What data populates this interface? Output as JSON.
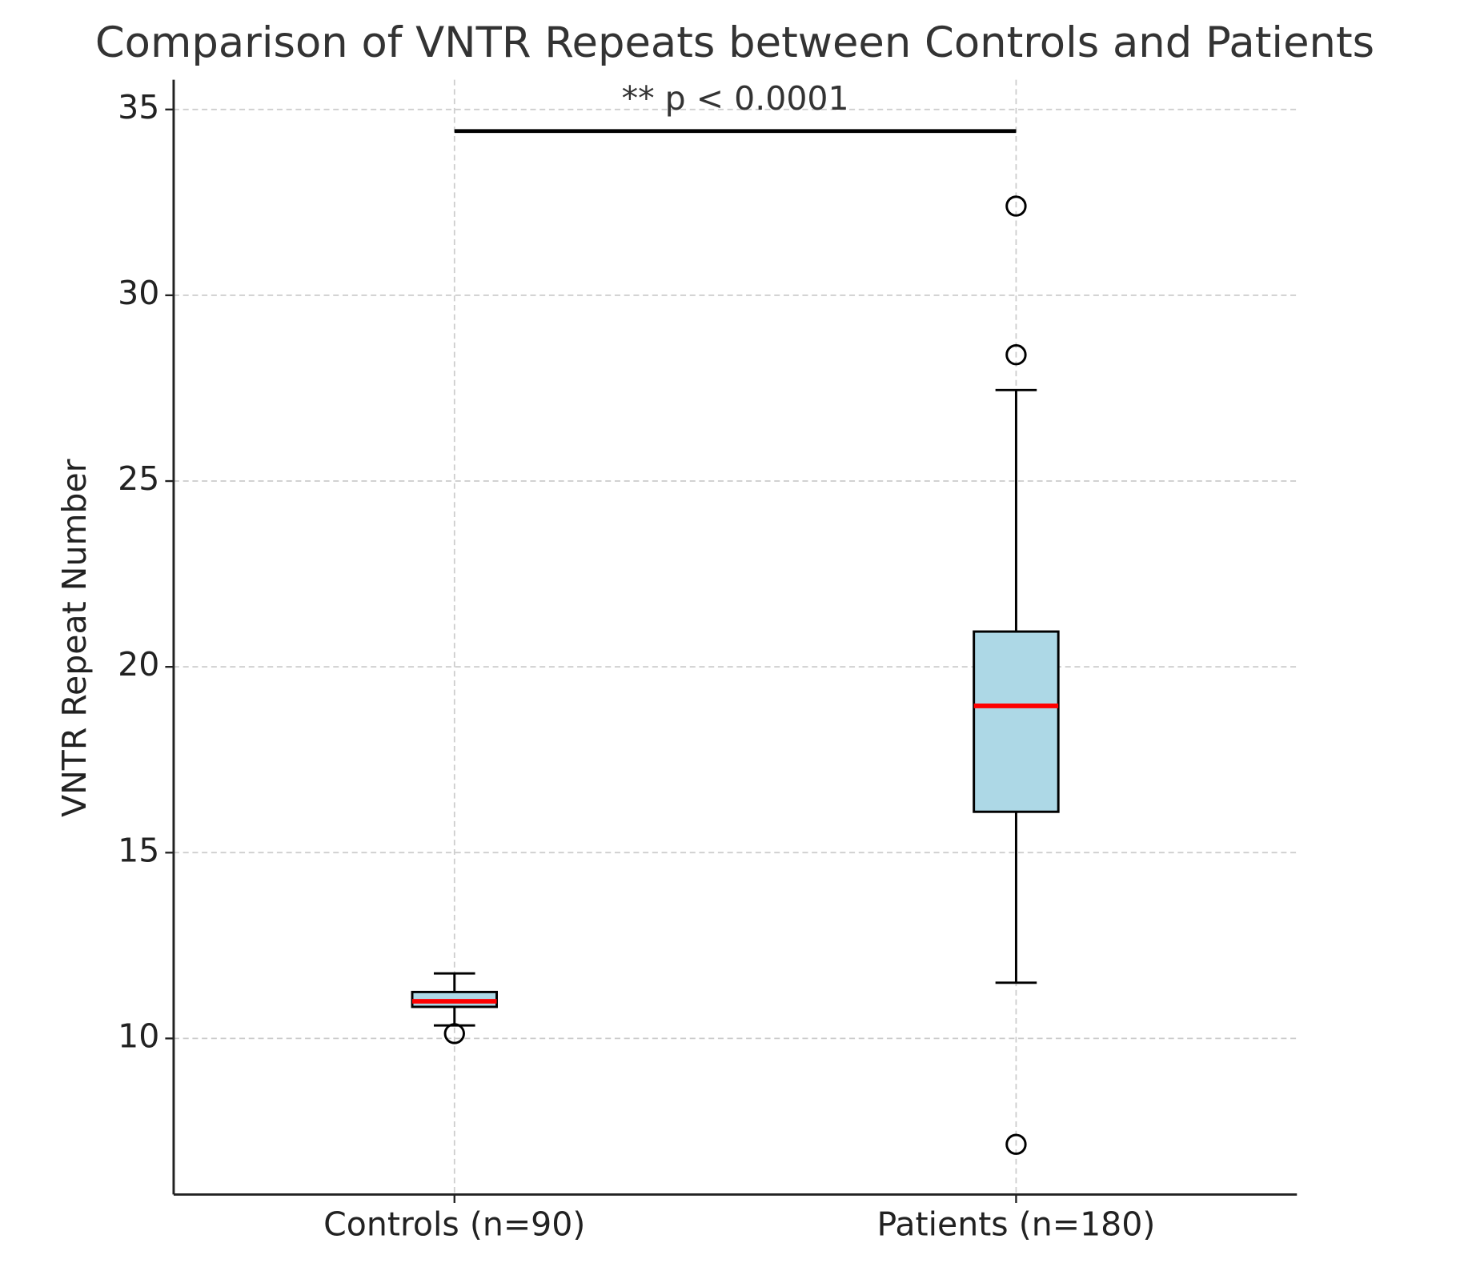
{
  "chart_data": {
    "type": "box",
    "title": "Comparison of VNTR Repeats between Controls and Patients",
    "y_label": "VNTR Repeat Number",
    "categories": [
      "Controls (n=90)",
      "Patients (n=180)"
    ],
    "boxes": [
      {
        "whisker_low": 10.35,
        "q1": 10.85,
        "median": 11.0,
        "q3": 11.25,
        "whisker_high": 11.75,
        "outliers": [
          10.13
        ]
      },
      {
        "whisker_low": 11.5,
        "q1": 16.1,
        "median": 18.95,
        "q3": 20.95,
        "whisker_high": 27.45,
        "outliers": [
          32.4,
          28.4,
          7.15
        ]
      }
    ],
    "box_color": "#add8e6",
    "median_color": "#ff0000",
    "annotation": {
      "text": "** p < 0.0001",
      "y": 34.42
    },
    "ylim": [
      5.8,
      35.8
    ],
    "yticks": [
      10,
      15,
      20,
      25,
      30,
      35
    ],
    "grid": true
  }
}
